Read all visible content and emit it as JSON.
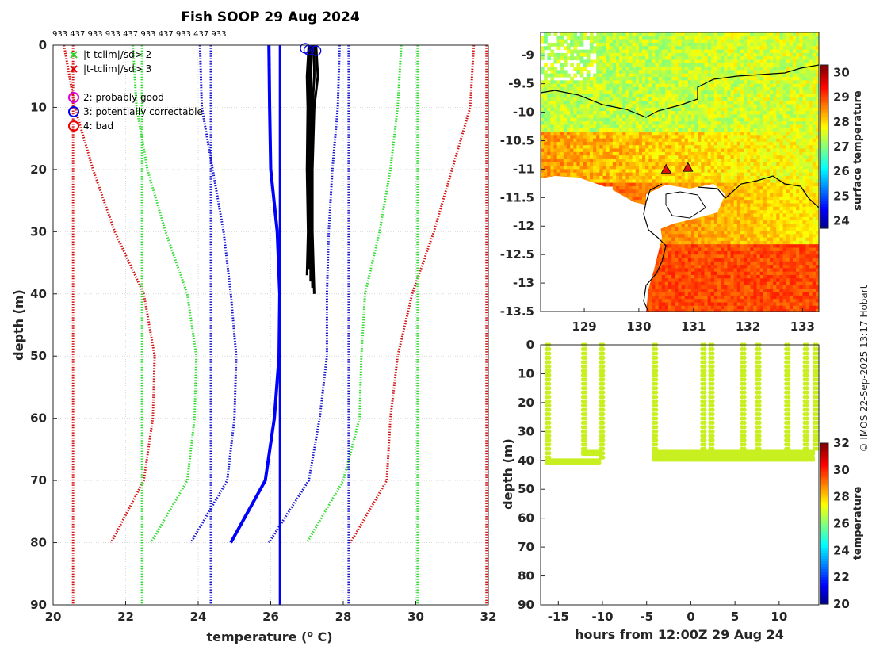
{
  "chart_data": [
    {
      "type": "line",
      "title": "Fish SOOP 29 Aug 2024",
      "id_row": "933 437 933 933 437 933 437 933 437 933",
      "xlabel": "temperature (",
      "xlabel_sup": "o",
      "xlabel_end": " C)",
      "ylabel": "depth (m)",
      "xlim": [
        20,
        32
      ],
      "ylim": [
        0,
        90
      ],
      "xticks": [
        20,
        22,
        24,
        26,
        28,
        30,
        32
      ],
      "yticks": [
        0,
        10,
        20,
        30,
        40,
        50,
        60,
        70,
        80,
        90
      ],
      "legend": [
        {
          "label": "|t-tclim|/sd> 2",
          "marker": "x",
          "color": "#22dd22"
        },
        {
          "label": "|t-tclim|/sd> 3",
          "marker": "x",
          "color": "#e00000"
        },
        {
          "label": "2: probably good",
          "marker": "o",
          "color": "#dd00dd"
        },
        {
          "label": "3: potentially correctable",
          "marker": "o",
          "color": "#0000ee"
        },
        {
          "label": "4: bad",
          "marker": "o",
          "color": "#ee0000"
        }
      ],
      "series": [
        {
          "name": "clim -3sd profile",
          "color": "#d31818",
          "style": "dotted",
          "depths": [
            0,
            10,
            20,
            30,
            40,
            50,
            60,
            70,
            80
          ],
          "values": [
            20.3,
            20.6,
            21.1,
            21.7,
            22.5,
            22.8,
            22.75,
            22.5,
            21.6
          ]
        },
        {
          "name": "clim -2sd profile",
          "color": "#33dd33",
          "style": "dotted",
          "depths": [
            0,
            10,
            20,
            30,
            40,
            50,
            60,
            70,
            80
          ],
          "values": [
            22.2,
            22.3,
            22.6,
            23.1,
            23.7,
            23.95,
            23.9,
            23.7,
            22.7
          ]
        },
        {
          "name": "clim -1sd profile",
          "color": "#1a1ad0",
          "style": "dotted",
          "depths": [
            0,
            10,
            20,
            30,
            40,
            50,
            60,
            70,
            80
          ],
          "values": [
            24.05,
            24.1,
            24.4,
            24.7,
            24.9,
            25.05,
            25.0,
            24.8,
            23.8
          ]
        },
        {
          "name": "clim mean profile",
          "color": "#0000ff",
          "style": "solid",
          "depths": [
            0,
            10,
            20,
            30,
            40,
            50,
            60,
            70,
            80
          ],
          "values": [
            25.95,
            25.97,
            26.0,
            26.18,
            26.25,
            26.23,
            26.1,
            25.85,
            24.9
          ]
        },
        {
          "name": "clim +1sd profile",
          "color": "#1a1ad0",
          "style": "dotted",
          "depths": [
            0,
            10,
            20,
            30,
            40,
            50,
            60,
            70,
            80
          ],
          "values": [
            27.9,
            27.85,
            27.7,
            27.6,
            27.55,
            27.55,
            27.35,
            27.05,
            25.95
          ]
        },
        {
          "name": "clim +2sd profile",
          "color": "#33dd33",
          "style": "dotted",
          "depths": [
            0,
            10,
            20,
            30,
            40,
            50,
            60,
            70,
            80
          ],
          "values": [
            29.6,
            29.5,
            29.3,
            29.0,
            28.6,
            28.5,
            28.45,
            28.0,
            27.0
          ]
        },
        {
          "name": "clim +3sd profile",
          "color": "#d31818",
          "style": "dotted",
          "depths": [
            0,
            10,
            20,
            30,
            40,
            50,
            60,
            70,
            80
          ],
          "values": [
            31.6,
            31.5,
            31.0,
            30.5,
            29.9,
            29.5,
            29.3,
            29.2,
            28.2
          ]
        },
        {
          "name": "ref -3sd",
          "color": "#d31818",
          "style": "dotted",
          "depths": [
            0,
            90
          ],
          "values": [
            20.55,
            20.55
          ]
        },
        {
          "name": "ref -2sd",
          "color": "#33dd33",
          "style": "dotted",
          "depths": [
            0,
            90
          ],
          "values": [
            22.45,
            22.45
          ]
        },
        {
          "name": "ref -1sd",
          "color": "#1a1ad0",
          "style": "dotted",
          "depths": [
            0,
            90
          ],
          "values": [
            24.35,
            24.35
          ]
        },
        {
          "name": "ref mean",
          "color": "#0000ff",
          "style": "solid",
          "depths": [
            0,
            90
          ],
          "values": [
            26.25,
            26.25
          ]
        },
        {
          "name": "ref +1sd",
          "color": "#1a1ad0",
          "style": "dotted",
          "depths": [
            0,
            90
          ],
          "values": [
            28.15,
            28.15
          ]
        },
        {
          "name": "ref +2sd",
          "color": "#33dd33",
          "style": "dotted",
          "depths": [
            0,
            90
          ],
          "values": [
            30.05,
            30.05
          ]
        },
        {
          "name": "ref +3sd",
          "color": "#d31818",
          "style": "dotted",
          "depths": [
            0,
            90
          ],
          "values": [
            31.95,
            31.95
          ]
        }
      ],
      "observed": {
        "color": "#000000",
        "profiles": [
          {
            "depths": [
              0,
              5,
              10,
              20,
              30,
              37
            ],
            "values": [
              27.05,
              27.0,
              27.02,
              27.0,
              27.03,
              27.0
            ]
          },
          {
            "depths": [
              0,
              5,
              10,
              20,
              30,
              38
            ],
            "values": [
              27.15,
              27.1,
              27.12,
              27.1,
              27.1,
              27.1
            ]
          },
          {
            "depths": [
              0,
              5,
              10,
              20,
              30,
              40
            ],
            "values": [
              27.25,
              27.3,
              27.2,
              27.15,
              27.15,
              27.2
            ]
          },
          {
            "depths": [
              0,
              5,
              10,
              20,
              30,
              36
            ],
            "values": [
              27.1,
              27.05,
              27.08,
              27.05,
              27.06,
              27.05
            ]
          },
          {
            "depths": [
              0,
              5,
              10,
              20,
              30,
              39
            ],
            "values": [
              27.2,
              27.2,
              27.15,
              27.12,
              27.12,
              27.15
            ]
          }
        ],
        "flags": [
          {
            "temp": 26.95,
            "depth": 0.5,
            "color": "#0000ee"
          },
          {
            "temp": 27.05,
            "depth": 0.8,
            "color": "#0000ee"
          },
          {
            "temp": 27.25,
            "depth": 0.9,
            "color": "#0000ee"
          }
        ]
      }
    },
    {
      "type": "heatmap",
      "xlim": [
        128.2,
        133.3
      ],
      "ylim": [
        -13.5,
        -8.6
      ],
      "xticks": [
        129,
        130,
        131,
        132,
        133
      ],
      "yticks": [
        -9,
        -9.5,
        -10,
        -10.5,
        -11,
        -11.5,
        -12,
        -12.5,
        -13,
        -13.5
      ],
      "colorbar": {
        "label": "surface temperature",
        "min": 23.7,
        "max": 30.3,
        "ticks": [
          30,
          29,
          28,
          27,
          26,
          25,
          24
        ]
      },
      "markers": [
        {
          "lon": 130.5,
          "lat": -11.0
        },
        {
          "lon": 130.9,
          "lat": -10.97
        }
      ]
    },
    {
      "type": "scatter",
      "xlabel": "hours from 12:00Z 29 Aug 24",
      "ylabel": "depth (m)",
      "xlim": [
        -17,
        14.5
      ],
      "ylim": [
        0,
        90
      ],
      "xticks": [
        -15,
        -10,
        -5,
        0,
        5,
        10
      ],
      "yticks": [
        0,
        10,
        20,
        30,
        40,
        50,
        60,
        70,
        80,
        90
      ],
      "point_color": "#c8f020",
      "colorbar": {
        "label": "temperature",
        "min": 20,
        "max": 32,
        "ticks": [
          32,
          30,
          28,
          26,
          24,
          22,
          20
        ]
      },
      "casts": [
        {
          "t": -16.3,
          "d": 40
        },
        {
          "t": -12.2,
          "d": 37
        },
        {
          "t": -10.2,
          "d": 40
        },
        {
          "t": -4.2,
          "d": 39
        },
        {
          "t": 1.3,
          "d": 37
        },
        {
          "t": 2.2,
          "d": 38
        },
        {
          "t": 5.8,
          "d": 37
        },
        {
          "t": 7.5,
          "d": 38
        },
        {
          "t": 10.8,
          "d": 37
        },
        {
          "t": 12.9,
          "d": 38
        },
        {
          "t": 14.0,
          "d": 37
        }
      ],
      "segments": [
        {
          "t0": -16.3,
          "t1": -10.2,
          "d": 40
        },
        {
          "t0": -12.2,
          "t1": -10.2,
          "d": 37
        },
        {
          "t0": -4.2,
          "t1": 14.0,
          "d": 37
        },
        {
          "t0": -4.2,
          "t1": 14.0,
          "d": 39
        }
      ]
    }
  ],
  "side_note": "© IMOS 22-Sep-2025 13:17 Hobart"
}
